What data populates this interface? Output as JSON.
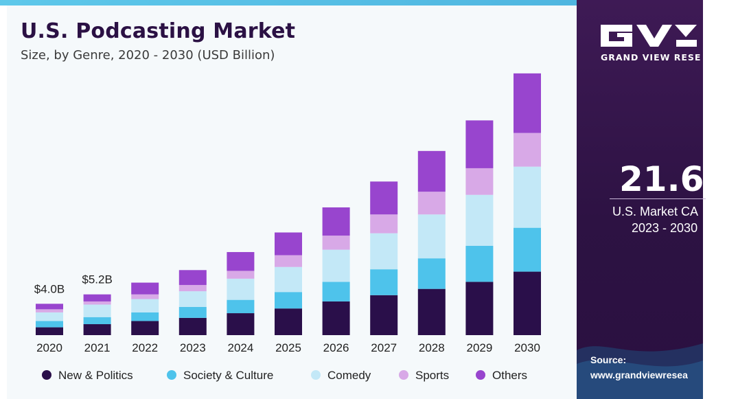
{
  "header": {
    "title": "U.S. Podcasting Market",
    "subtitle": "Size, by Genre, 2020 - 2030 (USD Billion)"
  },
  "sidebar": {
    "logo_icon": "gvr-logo-icon",
    "logo_caption": "GRAND VIEW RESE",
    "cagr_value": "21.6%",
    "cagr_label": "U.S. Market CA",
    "cagr_period": "2023 - 2030",
    "source_label": "Source:",
    "source_url": "www.grandviewresea"
  },
  "colors": {
    "title": "#2b1144",
    "panel_dark": "#2d1243",
    "accent_top": "#5ec8ea"
  },
  "chart_data": {
    "type": "bar",
    "stacked": true,
    "title": "U.S. Podcasting Market",
    "subtitle": "Size, by Genre, 2020 - 2030 (USD Billion)",
    "xlabel": "",
    "ylabel": "",
    "ylim": [
      0,
      34
    ],
    "grid": false,
    "legend": "bottom",
    "categories": [
      "2020",
      "2021",
      "2022",
      "2023",
      "2024",
      "2025",
      "2026",
      "2027",
      "2028",
      "2029",
      "2030"
    ],
    "series": [
      {
        "name": "New & Politics",
        "color": "#2a0f4a",
        "values": [
          1.0,
          1.4,
          1.8,
          2.2,
          2.8,
          3.4,
          4.3,
          5.1,
          5.9,
          6.8,
          8.1
        ]
      },
      {
        "name": "Society & Culture",
        "color": "#4ec3eb",
        "values": [
          0.8,
          0.9,
          1.1,
          1.4,
          1.7,
          2.1,
          2.5,
          3.3,
          3.9,
          4.6,
          5.6
        ]
      },
      {
        "name": "Comedy",
        "color": "#c3e8f7",
        "values": [
          1.1,
          1.6,
          1.7,
          2.0,
          2.7,
          3.2,
          4.1,
          4.6,
          5.6,
          6.5,
          7.8
        ]
      },
      {
        "name": "Sports",
        "color": "#d8a9e7",
        "values": [
          0.4,
          0.4,
          0.6,
          0.8,
          1.0,
          1.5,
          1.8,
          2.4,
          2.9,
          3.4,
          4.3
        ]
      },
      {
        "name": "Others",
        "color": "#9845ce",
        "values": [
          0.7,
          0.9,
          1.5,
          1.9,
          2.4,
          2.9,
          3.6,
          4.2,
          5.2,
          6.1,
          7.6
        ]
      }
    ],
    "annotations": [
      {
        "category": "2020",
        "text": "$4.0B"
      },
      {
        "category": "2021",
        "text": "$5.2B"
      }
    ]
  }
}
